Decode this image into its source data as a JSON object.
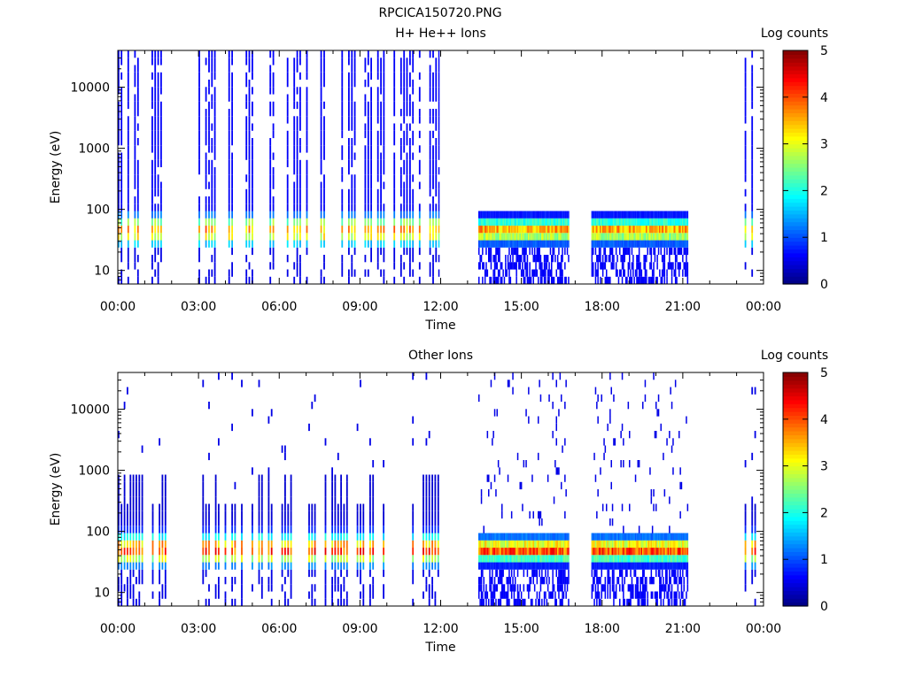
{
  "figure": {
    "title": "RPCICA150720.PNG"
  },
  "chart_data": [
    {
      "type": "heatmap",
      "title": "H+ He++ Ions",
      "xlabel": "Time",
      "ylabel": "Energy (eV)",
      "xlim": [
        0,
        24
      ],
      "ylim": [
        6,
        40000
      ],
      "yscale": "log",
      "xticks": [
        "00:00",
        "03:00",
        "06:00",
        "09:00",
        "12:00",
        "15:00",
        "18:00",
        "21:00",
        "00:00"
      ],
      "yticks": [
        "10",
        "100",
        "1000",
        "10000"
      ],
      "colorbar": {
        "label": "Log counts",
        "min": 0,
        "max": 5,
        "ticks": [
          "0",
          "1",
          "2",
          "3",
          "4",
          "5"
        ]
      },
      "data_intervals_hours": [
        [
          0.0,
          1.8
        ],
        [
          3.0,
          11.95
        ],
        [
          13.4,
          16.75
        ],
        [
          17.6,
          21.2
        ],
        [
          23.3,
          23.85
        ]
      ],
      "peak_energy_eV": 45,
      "peak_log_counts": 3.5
    },
    {
      "type": "heatmap",
      "title": "Other Ions",
      "xlabel": "Time",
      "ylabel": "Energy (eV)",
      "xlim": [
        0,
        24
      ],
      "ylim": [
        6,
        40000
      ],
      "yscale": "log",
      "xticks": [
        "00:00",
        "03:00",
        "06:00",
        "09:00",
        "12:00",
        "15:00",
        "18:00",
        "21:00",
        "00:00"
      ],
      "yticks": [
        "10",
        "100",
        "1000",
        "10000"
      ],
      "colorbar": {
        "label": "Log counts",
        "min": 0,
        "max": 5,
        "ticks": [
          "0",
          "1",
          "2",
          "3",
          "4",
          "5"
        ]
      },
      "data_intervals_hours": [
        [
          0.0,
          1.8
        ],
        [
          3.0,
          11.95
        ],
        [
          13.4,
          16.75
        ],
        [
          17.6,
          21.2
        ],
        [
          23.3,
          23.85
        ]
      ],
      "peak_energy_eV": 50,
      "peak_log_counts": 4.0
    }
  ]
}
